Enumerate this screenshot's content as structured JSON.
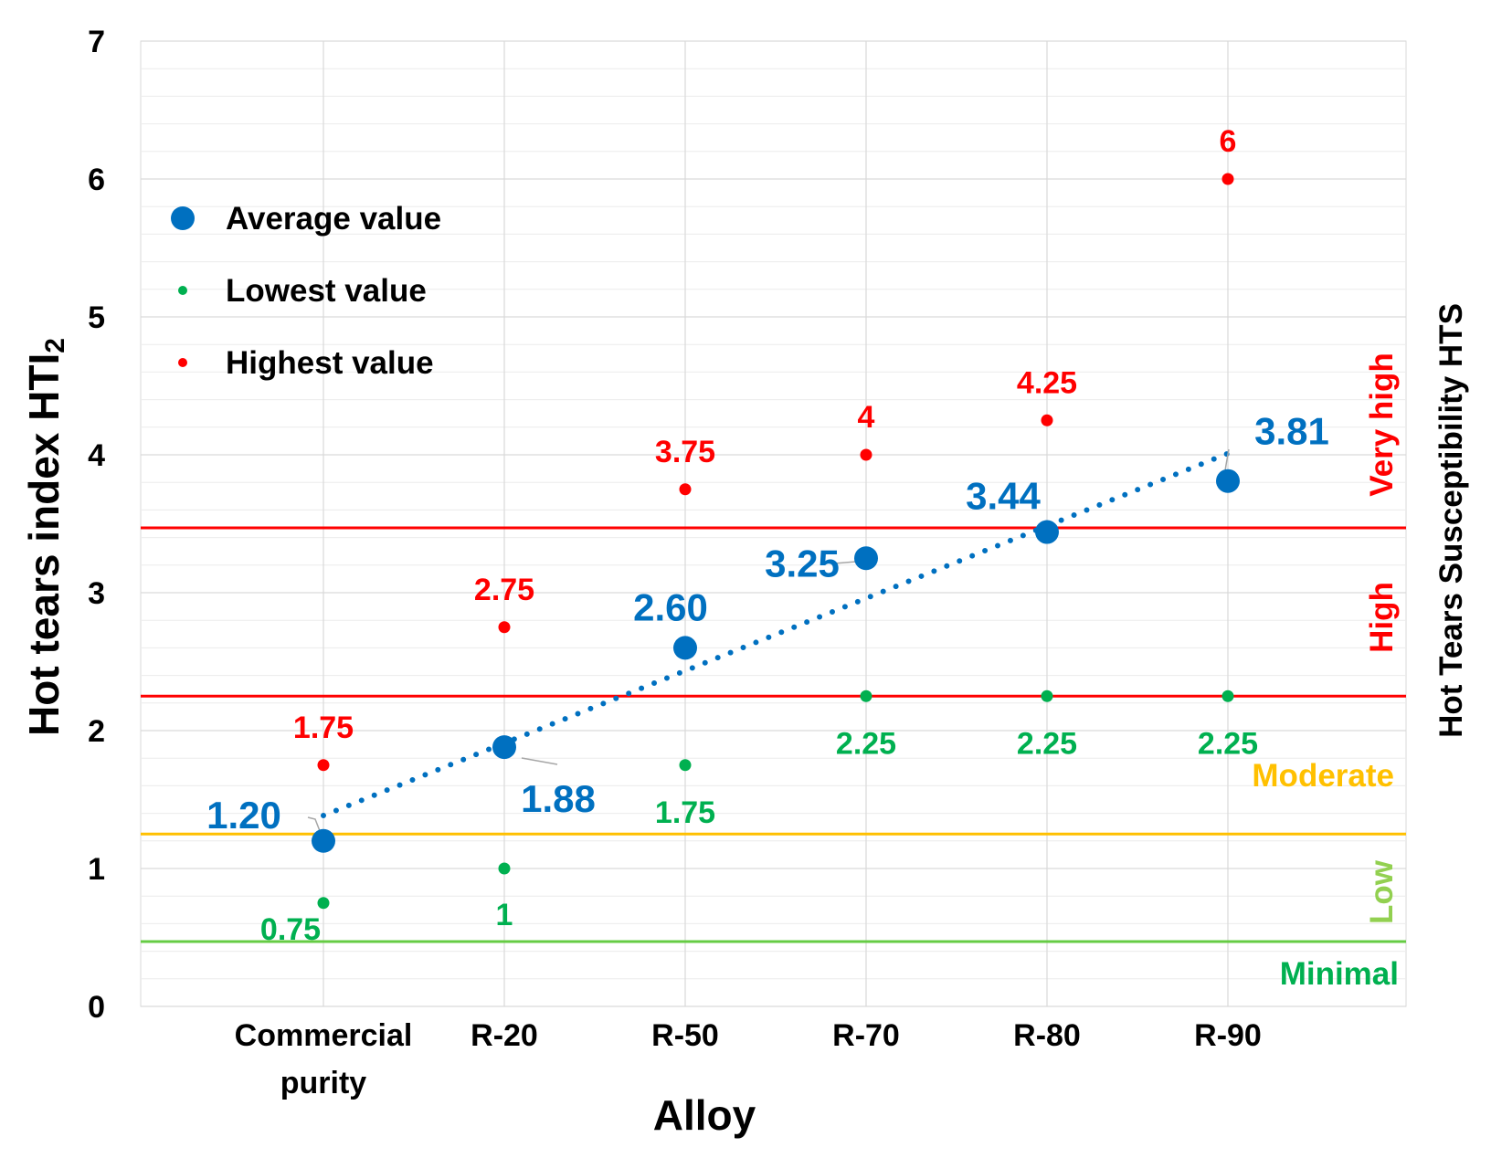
{
  "chart_data": {
    "type": "scatter",
    "xlabel": "Alloy",
    "ylabel": "Hot tears index HTI",
    "ylabel_subscript": "2",
    "y2label": "Hot Tears Susceptibility HTS",
    "ylim": [
      0,
      7
    ],
    "yticks": [
      "0",
      "1",
      "2",
      "3",
      "4",
      "5",
      "6",
      "7"
    ],
    "categories": [
      [
        "Commercial",
        "purity"
      ],
      [
        "R-20"
      ],
      [
        "R-50"
      ],
      [
        "R-70"
      ],
      [
        "R-80"
      ],
      [
        "R-90"
      ]
    ],
    "series": [
      {
        "name": "Average value",
        "color": "#0070c0",
        "values": [
          1.2,
          1.88,
          2.6,
          3.25,
          3.44,
          3.81
        ],
        "labels": [
          "1.20",
          "1.88",
          "2.60",
          "3.25",
          "3.44",
          "3.81"
        ]
      },
      {
        "name": "Lowest value",
        "color": "#00b050",
        "values": [
          0.75,
          1,
          1.75,
          2.25,
          2.25,
          2.25
        ],
        "labels": [
          "0.75",
          "1",
          "1.75",
          "2.25",
          "2.25",
          "2.25"
        ]
      },
      {
        "name": "Highest value",
        "color": "#ff0000",
        "values": [
          1.75,
          2.75,
          3.75,
          4,
          4.25,
          6
        ],
        "labels": [
          "1.75",
          "2.75",
          "3.75",
          "4",
          "4.25",
          "6"
        ]
      }
    ],
    "trendline": {
      "type": "linear",
      "series": "Average value",
      "style": "dotted",
      "color": "#0070c0"
    },
    "thresholds": [
      {
        "value": 0.47,
        "color": "#66cc44"
      },
      {
        "value": 1.25,
        "color": "#ffc000"
      },
      {
        "value": 2.25,
        "color": "#ff0000"
      },
      {
        "value": 3.47,
        "color": "#ff0000"
      }
    ],
    "zones": [
      {
        "label": "Minimal",
        "color": "#00b050",
        "orientation": "horizontal"
      },
      {
        "label": "Low",
        "color": "#92d050",
        "orientation": "vertical"
      },
      {
        "label": "Moderate",
        "color": "#ffc000",
        "orientation": "horizontal"
      },
      {
        "label": "High",
        "color": "#ff0000",
        "orientation": "vertical"
      },
      {
        "label": "Very high",
        "color": "#ff0000",
        "orientation": "vertical"
      }
    ],
    "legend": {
      "position": "top-left"
    },
    "grid": true
  }
}
